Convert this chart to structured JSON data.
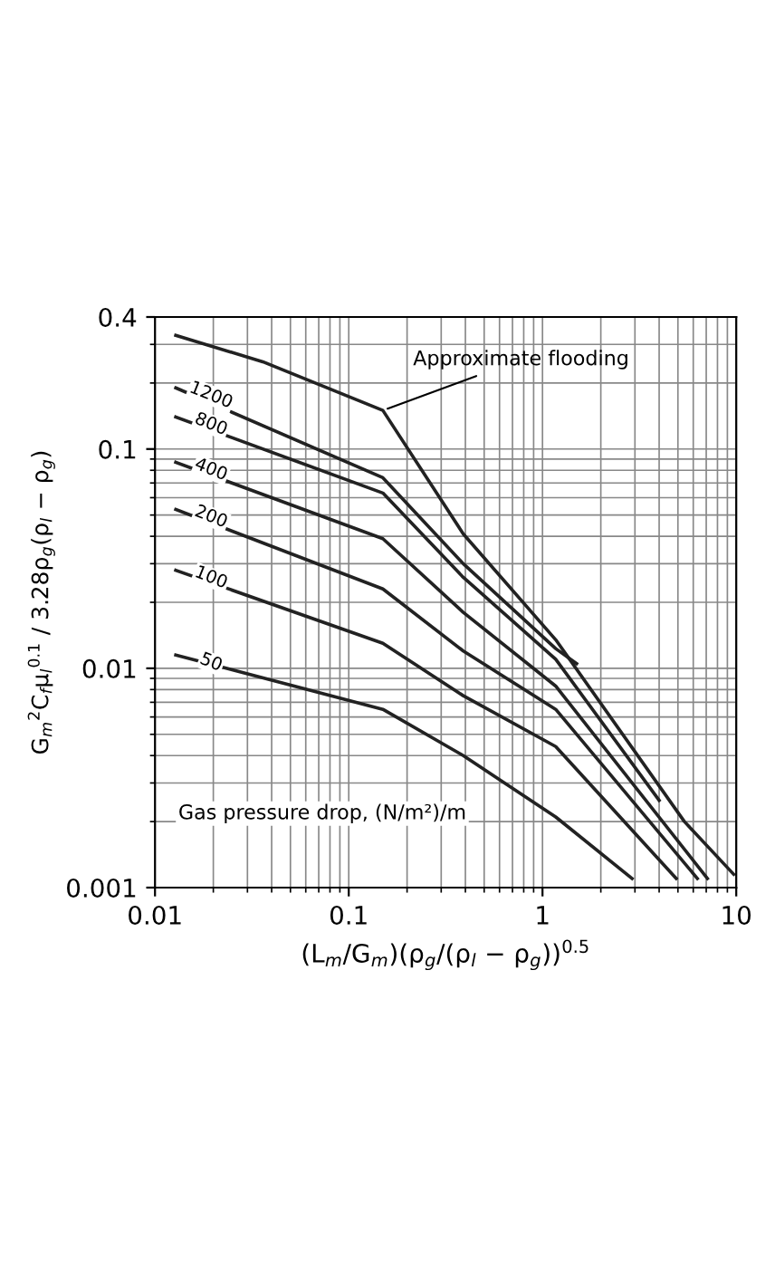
{
  "chart_data": {
    "type": "line",
    "xlabel": "(L$_{m}$/G$_{m}$)(ρ$_{g}$/(ρ$_{l}$ − ρ$_{g}$))$^{0.5}$",
    "ylabel": "G$_{m}$$^{2}$C$_{f}$μ$_{l}$$^{0.1}$ / 3.28ρ$_{g}$(ρ$_{l}$ − ρ$_{g}$)",
    "log": "xy",
    "grid": true,
    "marker": "none",
    "line_style": "solid",
    "legend": false,
    "xlim": [
      0.01,
      10
    ],
    "ylim": [
      0.001,
      0.4
    ],
    "xticks": [
      0.01,
      0.1,
      1,
      10
    ],
    "yticks": [
      0.001,
      0.01,
      0.1,
      0.4
    ],
    "series": [
      {
        "name": "Approximate flooding",
        "color": "#222222",
        "x": [
          0.0128,
          0.036,
          0.15,
          0.39,
          1.17,
          5.4,
          9.7
        ],
        "values": [
          0.33,
          0.25,
          0.15,
          0.041,
          0.0135,
          0.002,
          0.00115
        ]
      },
      {
        "name": "1200",
        "color": "#222222",
        "x": [
          0.0128,
          0.15,
          0.39,
          1.17,
          1.5
        ],
        "values": [
          0.19,
          0.074,
          0.03,
          0.0123,
          0.0105
        ]
      },
      {
        "name": "800",
        "color": "#222222",
        "x": [
          0.0128,
          0.15,
          0.39,
          1.17,
          4
        ],
        "values": [
          0.14,
          0.063,
          0.026,
          0.011,
          0.0025
        ]
      },
      {
        "name": "400",
        "color": "#222222",
        "x": [
          0.0128,
          0.15,
          0.39,
          1.17,
          7.1
        ],
        "values": [
          0.087,
          0.039,
          0.018,
          0.0083,
          0.0011
        ]
      },
      {
        "name": "200",
        "color": "#222222",
        "x": [
          0.0128,
          0.15,
          0.39,
          1.17,
          6.3
        ],
        "values": [
          0.053,
          0.023,
          0.012,
          0.0065,
          0.0011
        ]
      },
      {
        "name": "100",
        "color": "#222222",
        "x": [
          0.0128,
          0.15,
          0.39,
          1.17,
          4.9
        ],
        "values": [
          0.028,
          0.013,
          0.0075,
          0.0044,
          0.0011
        ]
      },
      {
        "name": "50",
        "color": "#222222",
        "x": [
          0.0128,
          0.15,
          0.39,
          1.17,
          2.9
        ],
        "values": [
          0.0115,
          0.0065,
          0.004,
          0.0021,
          0.0011
        ]
      }
    ],
    "annotations": [
      "Gas pressure drop, (N/m²)/m"
    ]
  }
}
